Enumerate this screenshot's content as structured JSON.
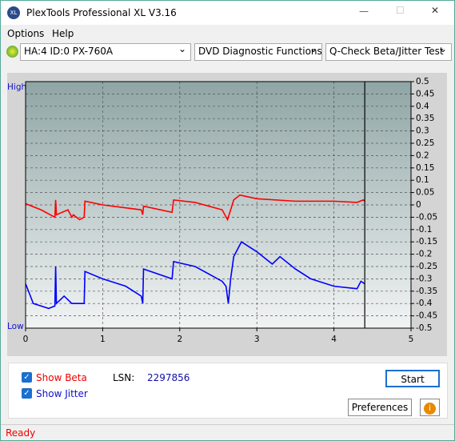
{
  "window": {
    "title": "PlexTools Professional XL V3.16",
    "menu": [
      "Options",
      "Help"
    ]
  },
  "toolbar": {
    "drive": "HA:4 ID:0  PX-760A",
    "function": "DVD Diagnostic Functions",
    "test": "Q-Check Beta/Jitter Test"
  },
  "chart_data": {
    "type": "line",
    "high_label": "High",
    "low_label": "Low",
    "xlim": [
      0,
      5
    ],
    "xticks": [
      0,
      1,
      2,
      3,
      4,
      5
    ],
    "ylim": [
      -0.5,
      0.5
    ],
    "yticks": [
      0.5,
      0.45,
      0.4,
      0.35,
      0.3,
      0.25,
      0.2,
      0.15,
      0.1,
      0.05,
      0,
      -0.05,
      -0.1,
      -0.15,
      -0.2,
      -0.25,
      -0.3,
      -0.35,
      -0.4,
      -0.45,
      -0.5
    ],
    "grid": true,
    "cursor_x": 4.4,
    "series": [
      {
        "name": "Show Beta",
        "color": "#ff0000",
        "x": [
          0,
          0.2,
          0.38,
          0.39,
          0.4,
          0.55,
          0.6,
          0.62,
          0.7,
          0.76,
          0.77,
          1.0,
          1.5,
          1.52,
          1.53,
          1.9,
          1.92,
          2.2,
          2.55,
          2.62,
          2.65,
          2.7,
          2.78,
          3.0,
          3.5,
          4.0,
          4.3,
          4.38,
          4.4
        ],
        "values": [
          0.005,
          -0.02,
          -0.05,
          0.02,
          -0.04,
          -0.02,
          -0.05,
          -0.04,
          -0.06,
          -0.05,
          0.015,
          0.0,
          -0.02,
          -0.04,
          -0.005,
          -0.03,
          0.02,
          0.01,
          -0.02,
          -0.06,
          -0.03,
          0.02,
          0.04,
          0.025,
          0.015,
          0.015,
          0.01,
          0.02,
          0.015
        ]
      },
      {
        "name": "Show Jitter",
        "color": "#0000ff",
        "x": [
          0,
          0.05,
          0.1,
          0.3,
          0.38,
          0.39,
          0.4,
          0.5,
          0.6,
          0.76,
          0.77,
          1.0,
          1.3,
          1.5,
          1.52,
          1.53,
          1.9,
          1.92,
          2.2,
          2.55,
          2.6,
          2.63,
          2.66,
          2.7,
          2.8,
          3.0,
          3.2,
          3.3,
          3.5,
          3.7,
          4.0,
          4.3,
          4.35,
          4.4
        ],
        "values": [
          -0.32,
          -0.36,
          -0.4,
          -0.42,
          -0.41,
          -0.25,
          -0.4,
          -0.37,
          -0.4,
          -0.4,
          -0.27,
          -0.3,
          -0.33,
          -0.37,
          -0.4,
          -0.26,
          -0.3,
          -0.23,
          -0.25,
          -0.31,
          -0.33,
          -0.4,
          -0.3,
          -0.21,
          -0.15,
          -0.19,
          -0.24,
          -0.21,
          -0.26,
          -0.3,
          -0.33,
          -0.34,
          -0.31,
          -0.32
        ]
      }
    ]
  },
  "controls": {
    "lsn_label": "LSN:",
    "lsn_value": "2297856",
    "start": "Start",
    "preferences": "Preferences"
  },
  "status": "Ready"
}
